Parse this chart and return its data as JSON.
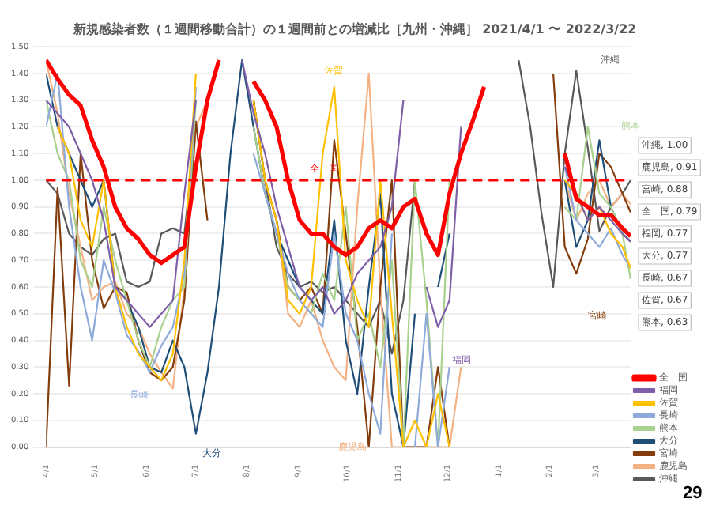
{
  "chart_data": {
    "type": "line",
    "title": "新規感染者数（１週間移動合計）の１週間前との増減比［九州・沖縄］ 2021/4/1 〜 2022/3/22",
    "x": [
      "2021-04-01",
      "2021-04-08",
      "2021-04-15",
      "2021-04-22",
      "2021-04-29",
      "2021-05-06",
      "2021-05-13",
      "2021-05-20",
      "2021-05-27",
      "2021-06-03",
      "2021-06-10",
      "2021-06-17",
      "2021-06-24",
      "2021-07-01",
      "2021-07-08",
      "2021-07-15",
      "2021-07-22",
      "2021-07-29",
      "2021-08-05",
      "2021-08-12",
      "2021-08-19",
      "2021-08-26",
      "2021-09-02",
      "2021-09-09",
      "2021-09-16",
      "2021-09-23",
      "2021-09-30",
      "2021-10-07",
      "2021-10-14",
      "2021-10-21",
      "2021-10-28",
      "2021-11-04",
      "2021-11-11",
      "2021-11-18",
      "2021-11-25",
      "2021-12-02",
      "2021-12-09",
      "2021-12-16",
      "2021-12-23",
      "2021-12-30",
      "2022-01-06",
      "2022-01-13",
      "2022-01-20",
      "2022-01-27",
      "2022-02-03",
      "2022-02-10",
      "2022-02-17",
      "2022-02-24",
      "2022-03-03",
      "2022-03-10",
      "2022-03-17",
      "2022-03-22"
    ],
    "xlim": [
      "2021-04-01",
      "2022-03-22"
    ],
    "xticks": [
      {
        "value": "2021-04-01",
        "label": "4/1"
      },
      {
        "value": "2021-05-01",
        "label": "5/1"
      },
      {
        "value": "2021-06-01",
        "label": "6/1"
      },
      {
        "value": "2021-07-01",
        "label": "7/1"
      },
      {
        "value": "2021-08-01",
        "label": "8/1"
      },
      {
        "value": "2021-09-01",
        "label": "9/1"
      },
      {
        "value": "2021-10-01",
        "label": "10/1"
      },
      {
        "value": "2021-11-01",
        "label": "11/1"
      },
      {
        "value": "2021-12-01",
        "label": "12/1"
      },
      {
        "value": "2022-01-01",
        "label": "1/1"
      },
      {
        "value": "2022-02-01",
        "label": "2/1"
      },
      {
        "value": "2022-03-01",
        "label": "3/1"
      }
    ],
    "series": [
      {
        "name": "全　国",
        "color": "#ff0000",
        "values": [
          1.45,
          1.38,
          1.32,
          1.28,
          1.15,
          1.05,
          0.9,
          0.82,
          0.78,
          0.72,
          0.69,
          0.72,
          0.75,
          1.05,
          1.3,
          1.45,
          null,
          null,
          1.37,
          1.3,
          1.2,
          1.0,
          0.85,
          0.8,
          0.8,
          0.75,
          0.72,
          0.75,
          0.82,
          0.85,
          0.82,
          0.9,
          0.93,
          0.8,
          0.72,
          0.95,
          1.1,
          1.22,
          1.35,
          null,
          null,
          null,
          null,
          null,
          null,
          1.1,
          0.93,
          0.9,
          0.87,
          0.87,
          0.82,
          0.79
        ]
      },
      {
        "name": "福岡",
        "color": "#7f5fa8",
        "values": [
          1.3,
          1.25,
          1.2,
          1.1,
          1.0,
          0.85,
          0.6,
          0.55,
          0.5,
          0.45,
          0.5,
          0.55,
          0.95,
          1.3,
          null,
          null,
          null,
          1.45,
          1.25,
          1.1,
          0.9,
          0.75,
          0.6,
          0.55,
          0.6,
          0.5,
          0.55,
          0.65,
          0.7,
          0.75,
          0.9,
          1.3,
          null,
          0.6,
          0.45,
          0.55,
          1.2,
          null,
          null,
          null,
          null,
          null,
          null,
          null,
          null,
          1.05,
          0.95,
          0.85,
          0.9,
          0.85,
          0.8,
          0.77
        ]
      },
      {
        "name": "佐賀",
        "color": "#ffc000",
        "values": [
          null,
          1.2,
          1.1,
          0.85,
          0.75,
          1.0,
          0.6,
          0.45,
          0.35,
          0.3,
          0.25,
          0.35,
          0.7,
          1.4,
          null,
          null,
          null,
          null,
          1.3,
          1.0,
          0.85,
          0.55,
          0.5,
          0.6,
          1.1,
          1.35,
          0.7,
          0.55,
          0.45,
          1.0,
          0.5,
          0.0,
          0.1,
          0.0,
          0.2,
          0.0,
          null,
          null,
          null,
          null,
          null,
          null,
          null,
          null,
          null,
          1.0,
          0.95,
          0.85,
          0.9,
          0.8,
          0.75,
          0.67
        ]
      },
      {
        "name": "長崎",
        "color": "#8eaadb",
        "values": [
          1.2,
          1.4,
          0.9,
          0.6,
          0.4,
          0.7,
          0.58,
          0.42,
          0.36,
          0.28,
          0.38,
          0.45,
          0.65,
          1.35,
          null,
          null,
          null,
          null,
          1.1,
          0.95,
          0.8,
          0.65,
          0.55,
          0.5,
          0.45,
          0.8,
          0.5,
          0.4,
          0.2,
          0.05,
          0.8,
          null,
          0.0,
          0.5,
          0.0,
          0.3,
          null,
          null,
          null,
          null,
          null,
          null,
          null,
          null,
          null,
          1.05,
          0.85,
          0.8,
          0.75,
          0.82,
          0.72,
          0.67
        ]
      },
      {
        "name": "熊本",
        "color": "#a9d18e",
        "values": [
          1.3,
          1.1,
          1.0,
          0.7,
          0.6,
          0.9,
          0.7,
          0.55,
          0.4,
          0.3,
          0.45,
          0.55,
          0.6,
          1.3,
          null,
          null,
          null,
          null,
          1.2,
          0.95,
          0.8,
          0.6,
          0.55,
          0.5,
          0.65,
          0.55,
          0.9,
          0.4,
          0.5,
          0.3,
          0.7,
          0.0,
          1.0,
          0.55,
          0.0,
          1.0,
          null,
          null,
          null,
          null,
          null,
          null,
          null,
          null,
          null,
          0.9,
          0.85,
          1.2,
          0.95,
          0.9,
          0.8,
          0.63
        ]
      },
      {
        "name": "大分",
        "color": "#1f4e79",
        "values": [
          1.4,
          1.2,
          1.1,
          1.0,
          0.9,
          1.0,
          0.6,
          0.55,
          0.45,
          0.3,
          0.28,
          0.4,
          0.3,
          0.05,
          0.28,
          0.6,
          1.1,
          1.45,
          1.2,
          0.95,
          0.8,
          0.7,
          0.6,
          0.55,
          0.5,
          0.85,
          0.4,
          0.2,
          0.6,
          0.95,
          0.2,
          0.0,
          0.5,
          null,
          0.6,
          0.8,
          null,
          null,
          null,
          null,
          null,
          null,
          null,
          null,
          null,
          1.0,
          0.75,
          0.85,
          1.15,
          0.9,
          0.8,
          0.77
        ]
      },
      {
        "name": "宮崎",
        "color": "#843c0c",
        "values": [
          0.0,
          0.97,
          0.23,
          1.1,
          0.7,
          0.52,
          0.6,
          0.58,
          0.4,
          0.28,
          0.25,
          0.3,
          0.55,
          1.22,
          0.85,
          null,
          null,
          null,
          1.3,
          1.0,
          0.85,
          0.6,
          0.55,
          0.6,
          0.5,
          1.15,
          0.8,
          0.45,
          0.0,
          0.6,
          1.0,
          0.0,
          0.0,
          0.0,
          0.3,
          0.0,
          null,
          null,
          null,
          null,
          null,
          null,
          null,
          null,
          1.4,
          0.75,
          0.65,
          0.78,
          1.1,
          1.05,
          0.95,
          0.88
        ]
      },
      {
        "name": "鹿児島",
        "color": "#f4b183",
        "values": [
          1.45,
          1.25,
          0.95,
          0.75,
          0.55,
          0.6,
          0.62,
          0.5,
          0.45,
          0.35,
          0.28,
          0.22,
          0.6,
          1.2,
          1.3,
          1.45,
          null,
          null,
          1.3,
          1.0,
          0.85,
          0.5,
          0.45,
          0.55,
          0.4,
          0.3,
          0.25,
          0.9,
          1.4,
          0.6,
          0.0,
          0.0,
          0.0,
          0.0,
          0.0,
          0.0,
          0.3,
          null,
          null,
          null,
          null,
          null,
          null,
          null,
          null,
          1.0,
          0.85,
          0.95,
          1.0,
          0.9,
          0.95,
          0.91
        ]
      },
      {
        "name": "沖縄",
        "color": "#595959",
        "values": [
          1.0,
          0.95,
          0.8,
          0.75,
          0.72,
          0.78,
          0.8,
          0.62,
          0.6,
          0.62,
          0.8,
          0.82,
          0.8,
          1.2,
          null,
          null,
          null,
          null,
          1.3,
          1.0,
          0.75,
          0.65,
          0.6,
          0.62,
          0.58,
          0.6,
          0.55,
          0.5,
          0.45,
          0.55,
          0.35,
          0.55,
          1.0,
          null,
          null,
          null,
          null,
          null,
          null,
          null,
          null,
          1.45,
          1.2,
          0.87,
          0.6,
          1.1,
          1.41,
          1.12,
          0.81,
          0.9,
          0.95,
          1.0
        ]
      }
    ],
    "ylim": [
      0,
      1.5
    ],
    "yticks": [
      {
        "value": 0,
        "label": "0.00"
      },
      {
        "value": 0.1,
        "label": "0.10"
      },
      {
        "value": 0.2,
        "label": "0.20"
      },
      {
        "value": 0.3,
        "label": "0.30"
      },
      {
        "value": 0.4,
        "label": "0.40"
      },
      {
        "value": 0.5,
        "label": "0.50"
      },
      {
        "value": 0.6,
        "label": "0.60"
      },
      {
        "value": 0.7,
        "label": "0.70"
      },
      {
        "value": 0.8,
        "label": "0.80"
      },
      {
        "value": 0.9,
        "label": "0.90"
      },
      {
        "value": 1,
        "label": "1.00"
      },
      {
        "value": 1.1,
        "label": "1.10"
      },
      {
        "value": 1.2,
        "label": "1.20"
      },
      {
        "value": 1.3,
        "label": "1.30"
      },
      {
        "value": 1.4,
        "label": "1.40"
      },
      {
        "value": 1.5,
        "label": "1.50"
      }
    ],
    "grid": "y",
    "legend": "bottom right",
    "marker": "none",
    "line_style": "solid",
    "ref_lines": [
      {
        "axis": "y",
        "value": 1,
        "color": "#ff0000",
        "line_style": "dashed"
      }
    ],
    "annotations": [
      "佐賀",
      "全　国",
      "長崎",
      "大分",
      "鹿児島",
      "福岡",
      "宮崎",
      "熊本",
      "沖縄",
      "沖縄, 1.00",
      "鹿児島, 0.91",
      "宮崎, 0.88",
      "全　国, 0.79",
      "福岡, 0.77",
      "大分, 0.77",
      "長崎, 0.67",
      "佐賀, 0.67",
      "熊本, 0.63",
      "29"
    ]
  }
}
